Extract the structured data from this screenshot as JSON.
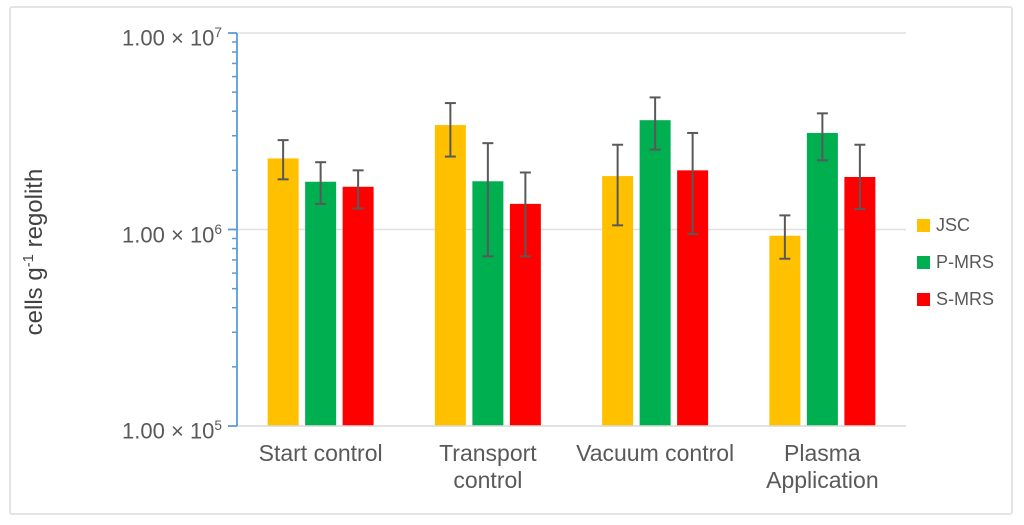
{
  "figure": {
    "ylabel_parts": {
      "pre": "cells g",
      "sup": "-1",
      "post": " regolith"
    }
  },
  "chart_data": {
    "type": "bar",
    "scale": "log",
    "title": "",
    "xlabel": "",
    "ylabel": "cells g⁻¹ regolith",
    "ylim": [
      100000,
      10000000
    ],
    "grid": true,
    "legend_position": "right",
    "y_ticks": [
      {
        "base": "1.00 × 10",
        "exp": "7",
        "value": 10000000
      },
      {
        "base": "1.00 × 10",
        "exp": "6",
        "value": 1000000
      },
      {
        "base": "1.00 × 10",
        "exp": "5",
        "value": 100000
      }
    ],
    "categories": [
      {
        "label": "Start control",
        "lines": [
          "Start control"
        ]
      },
      {
        "label": "Transport control",
        "lines": [
          "Transport",
          "control"
        ]
      },
      {
        "label": "Vacuum control",
        "lines": [
          "Vacuum control"
        ]
      },
      {
        "label": "Plasma Application",
        "lines": [
          "Plasma",
          "Application"
        ]
      }
    ],
    "series": [
      {
        "name": "JSC",
        "color": "#FFC000",
        "values": [
          2300000,
          3400000,
          1870000,
          930000
        ],
        "error_low": [
          1800000,
          2350000,
          1050000,
          710000
        ],
        "error_high": [
          2850000,
          4400000,
          2700000,
          1180000
        ]
      },
      {
        "name": "P-MRS",
        "color": "#00B050",
        "values": [
          1750000,
          1760000,
          3600000,
          3100000
        ],
        "error_low": [
          1350000,
          730000,
          2550000,
          2250000
        ],
        "error_high": [
          2200000,
          2750000,
          4700000,
          3900000
        ]
      },
      {
        "name": "S-MRS",
        "color": "#FF0000",
        "values": [
          1650000,
          1350000,
          2000000,
          1850000
        ],
        "error_low": [
          1280000,
          730000,
          950000,
          1270000
        ],
        "error_high": [
          2000000,
          1950000,
          3100000,
          2700000
        ]
      }
    ],
    "colors": {
      "axis": "#5B9BD5",
      "gridline": "#E0E0E0",
      "baseline": "#D9D9D9",
      "error_bar": "#595959",
      "text": "#595959"
    }
  }
}
